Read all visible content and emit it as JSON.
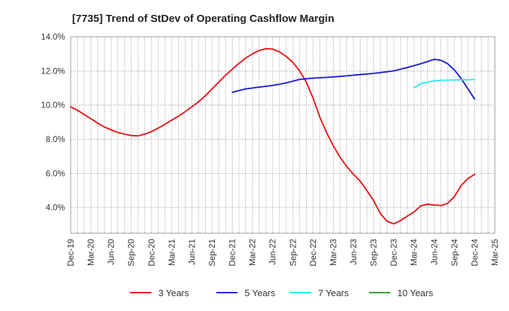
{
  "chart_data": {
    "type": "line",
    "title": "[7735]  Trend of StDev of Operating Cashflow Margin",
    "xlabel": "",
    "ylabel": "",
    "x_tick_labels": [
      "Dec-19",
      "Mar-20",
      "Jun-20",
      "Sep-20",
      "Dec-20",
      "Mar-21",
      "Jun-21",
      "Sep-21",
      "Dec-21",
      "Mar-22",
      "Jun-22",
      "Sep-22",
      "Dec-22",
      "Mar-23",
      "Jun-23",
      "Sep-23",
      "Dec-23",
      "Mar-24",
      "Jun-24",
      "Sep-24",
      "Dec-24",
      "Mar-25"
    ],
    "y_tick_labels": [
      "4.0%",
      "6.0%",
      "8.0%",
      "10.0%",
      "12.0%",
      "14.0%"
    ],
    "y_ticks": [
      4,
      6,
      8,
      10,
      12,
      14
    ],
    "ylim": [
      2.5,
      14
    ],
    "xlim": [
      "2019-12",
      "2025-03"
    ],
    "grid": true,
    "legend_position": "bottom",
    "series": [
      {
        "name": "3 Years",
        "color": "#e8191c",
        "points": [
          [
            "2019-12",
            9.9
          ],
          [
            "2020-01",
            9.7
          ],
          [
            "2020-02",
            9.45
          ],
          [
            "2020-03",
            9.2
          ],
          [
            "2020-04",
            8.95
          ],
          [
            "2020-05",
            8.72
          ],
          [
            "2020-06",
            8.55
          ],
          [
            "2020-07",
            8.4
          ],
          [
            "2020-08",
            8.3
          ],
          [
            "2020-09",
            8.22
          ],
          [
            "2020-10",
            8.2
          ],
          [
            "2020-11",
            8.3
          ],
          [
            "2020-12",
            8.45
          ],
          [
            "2021-01",
            8.65
          ],
          [
            "2021-02",
            8.88
          ],
          [
            "2021-03",
            9.12
          ],
          [
            "2021-04",
            9.35
          ],
          [
            "2021-05",
            9.62
          ],
          [
            "2021-06",
            9.9
          ],
          [
            "2021-07",
            10.2
          ],
          [
            "2021-08",
            10.55
          ],
          [
            "2021-09",
            10.95
          ],
          [
            "2021-10",
            11.35
          ],
          [
            "2021-11",
            11.75
          ],
          [
            "2021-12",
            12.1
          ],
          [
            "2022-01",
            12.45
          ],
          [
            "2022-02",
            12.75
          ],
          [
            "2022-03",
            13.0
          ],
          [
            "2022-04",
            13.2
          ],
          [
            "2022-05",
            13.3
          ],
          [
            "2022-06",
            13.28
          ],
          [
            "2022-07",
            13.12
          ],
          [
            "2022-08",
            12.85
          ],
          [
            "2022-09",
            12.5
          ],
          [
            "2022-10",
            12.0
          ],
          [
            "2022-11",
            11.35
          ],
          [
            "2022-12",
            10.4
          ],
          [
            "2023-01",
            9.3
          ],
          [
            "2023-02",
            8.4
          ],
          [
            "2023-03",
            7.62
          ],
          [
            "2023-04",
            6.95
          ],
          [
            "2023-05",
            6.4
          ],
          [
            "2023-06",
            5.95
          ],
          [
            "2023-07",
            5.55
          ],
          [
            "2023-08",
            5.0
          ],
          [
            "2023-09",
            4.4
          ],
          [
            "2023-10",
            3.65
          ],
          [
            "2023-11",
            3.2
          ],
          [
            "2023-12",
            3.05
          ],
          [
            "2024-01",
            3.25
          ],
          [
            "2024-02",
            3.5
          ],
          [
            "2024-03",
            3.75
          ],
          [
            "2024-04",
            4.1
          ],
          [
            "2024-05",
            4.2
          ],
          [
            "2024-06",
            4.15
          ],
          [
            "2024-07",
            4.12
          ],
          [
            "2024-08",
            4.25
          ],
          [
            "2024-09",
            4.65
          ],
          [
            "2024-10",
            5.3
          ],
          [
            "2024-11",
            5.7
          ],
          [
            "2024-12",
            5.95
          ]
        ]
      },
      {
        "name": "5 Years",
        "color": "#1f26c8",
        "points": [
          [
            "2021-12",
            10.75
          ],
          [
            "2022-02",
            10.95
          ],
          [
            "2022-04",
            11.05
          ],
          [
            "2022-06",
            11.15
          ],
          [
            "2022-08",
            11.3
          ],
          [
            "2022-10",
            11.5
          ],
          [
            "2022-12",
            11.58
          ],
          [
            "2023-02",
            11.62
          ],
          [
            "2023-04",
            11.68
          ],
          [
            "2023-06",
            11.75
          ],
          [
            "2023-08",
            11.82
          ],
          [
            "2023-10",
            11.9
          ],
          [
            "2023-12",
            12.0
          ],
          [
            "2024-02",
            12.2
          ],
          [
            "2024-04",
            12.42
          ],
          [
            "2024-05",
            12.55
          ],
          [
            "2024-06",
            12.68
          ],
          [
            "2024-07",
            12.62
          ],
          [
            "2024-08",
            12.42
          ],
          [
            "2024-09",
            12.05
          ],
          [
            "2024-10",
            11.55
          ],
          [
            "2024-11",
            10.95
          ],
          [
            "2024-12",
            10.35
          ]
        ]
      },
      {
        "name": "7 Years",
        "color": "#33e8ef",
        "points": [
          [
            "2024-03",
            11.02
          ],
          [
            "2024-04",
            11.25
          ],
          [
            "2024-05",
            11.35
          ],
          [
            "2024-06",
            11.42
          ],
          [
            "2024-07",
            11.45
          ],
          [
            "2024-08",
            11.46
          ],
          [
            "2024-09",
            11.47
          ],
          [
            "2024-10",
            11.48
          ],
          [
            "2024-11",
            11.48
          ],
          [
            "2024-12",
            11.5
          ]
        ]
      },
      {
        "name": "10 Years",
        "color": "#2ea02e",
        "points": []
      }
    ]
  }
}
